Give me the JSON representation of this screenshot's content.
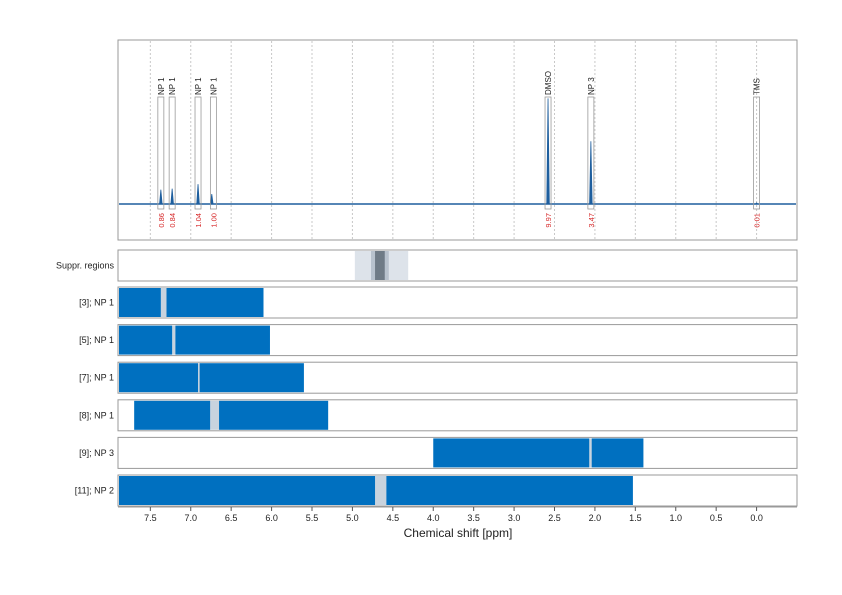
{
  "chart_data": {
    "type": "line",
    "xlabel": "Chemical shift [ppm]",
    "xlim": [
      7.9,
      -0.5
    ],
    "x_ticks": [
      "7.5",
      "7.0",
      "6.5",
      "6.0",
      "5.5",
      "5.0",
      "4.5",
      "4.0",
      "3.5",
      "3.0",
      "2.5",
      "2.0",
      "1.5",
      "1.0",
      "0.5",
      "0.0"
    ],
    "x_tick_values": [
      7.5,
      7.0,
      6.5,
      6.0,
      5.5,
      5.0,
      4.5,
      4.0,
      3.5,
      3.0,
      2.5,
      2.0,
      1.5,
      1.0,
      0.5,
      0.0
    ],
    "grid": true,
    "colors": {
      "spectrum": "#1f5f9e",
      "bar": "#0070c0",
      "gap": "#c8d3de",
      "integral": "#d62728",
      "supp_outer": "#dde3ea",
      "supp_mid": "#b8c2cd",
      "supp_inner": "#6f7b86"
    },
    "spectrum_peaks": [
      {
        "x": 7.37,
        "h": 0.13
      },
      {
        "x": 7.23,
        "h": 0.14
      },
      {
        "x": 6.91,
        "h": 0.18
      },
      {
        "x": 6.74,
        "h": 0.09
      },
      {
        "x": 2.58,
        "h": 0.96
      },
      {
        "x": 2.05,
        "h": 0.57
      },
      {
        "x": 0.0,
        "h": 0.01
      }
    ],
    "peak_annotations": [
      {
        "x": 7.37,
        "label": "NP 1",
        "integral": "0.86"
      },
      {
        "x": 7.23,
        "label": "NP 1",
        "integral": "0.84"
      },
      {
        "x": 6.91,
        "label": "NP 1",
        "integral": "1.04"
      },
      {
        "x": 6.72,
        "label": "NP 1",
        "integral": "1.00"
      },
      {
        "x": 2.58,
        "label": "DMSO",
        "integral": "9.97"
      },
      {
        "x": 2.05,
        "label": "NP 3",
        "integral": "3.47"
      },
      {
        "x": 0.0,
        "label": "TMS",
        "integral": "0.01"
      }
    ],
    "suppression": {
      "label": "Suppr. regions",
      "outer": [
        4.97,
        4.31
      ],
      "mid": [
        4.77,
        4.55
      ],
      "inner": [
        4.72,
        4.6
      ]
    },
    "tracks": [
      {
        "label": "[3]; NP 1",
        "segments": [
          [
            7.9,
            7.37
          ],
          [
            7.3,
            6.1
          ]
        ],
        "gap": [
          7.37,
          7.3
        ]
      },
      {
        "label": "[5]; NP 1",
        "segments": [
          [
            7.9,
            7.23
          ],
          [
            7.19,
            6.02
          ]
        ],
        "gap": [
          7.23,
          7.19
        ]
      },
      {
        "label": "[7]; NP 1",
        "segments": [
          [
            7.9,
            6.91
          ],
          [
            6.89,
            5.6
          ]
        ],
        "gap": [
          6.91,
          6.89
        ]
      },
      {
        "label": "[8]; NP 1",
        "segments": [
          [
            7.7,
            6.76
          ],
          [
            6.65,
            5.3
          ]
        ],
        "gap": [
          6.76,
          6.65
        ]
      },
      {
        "label": "[9]; NP 3",
        "segments": [
          [
            4.0,
            2.07
          ],
          [
            2.04,
            1.4
          ]
        ],
        "gap": [
          2.07,
          2.04
        ]
      },
      {
        "label": "[11]; NP 2",
        "segments": [
          [
            7.9,
            4.72
          ],
          [
            4.58,
            1.53
          ]
        ],
        "gap": [
          4.72,
          4.58
        ]
      }
    ]
  }
}
